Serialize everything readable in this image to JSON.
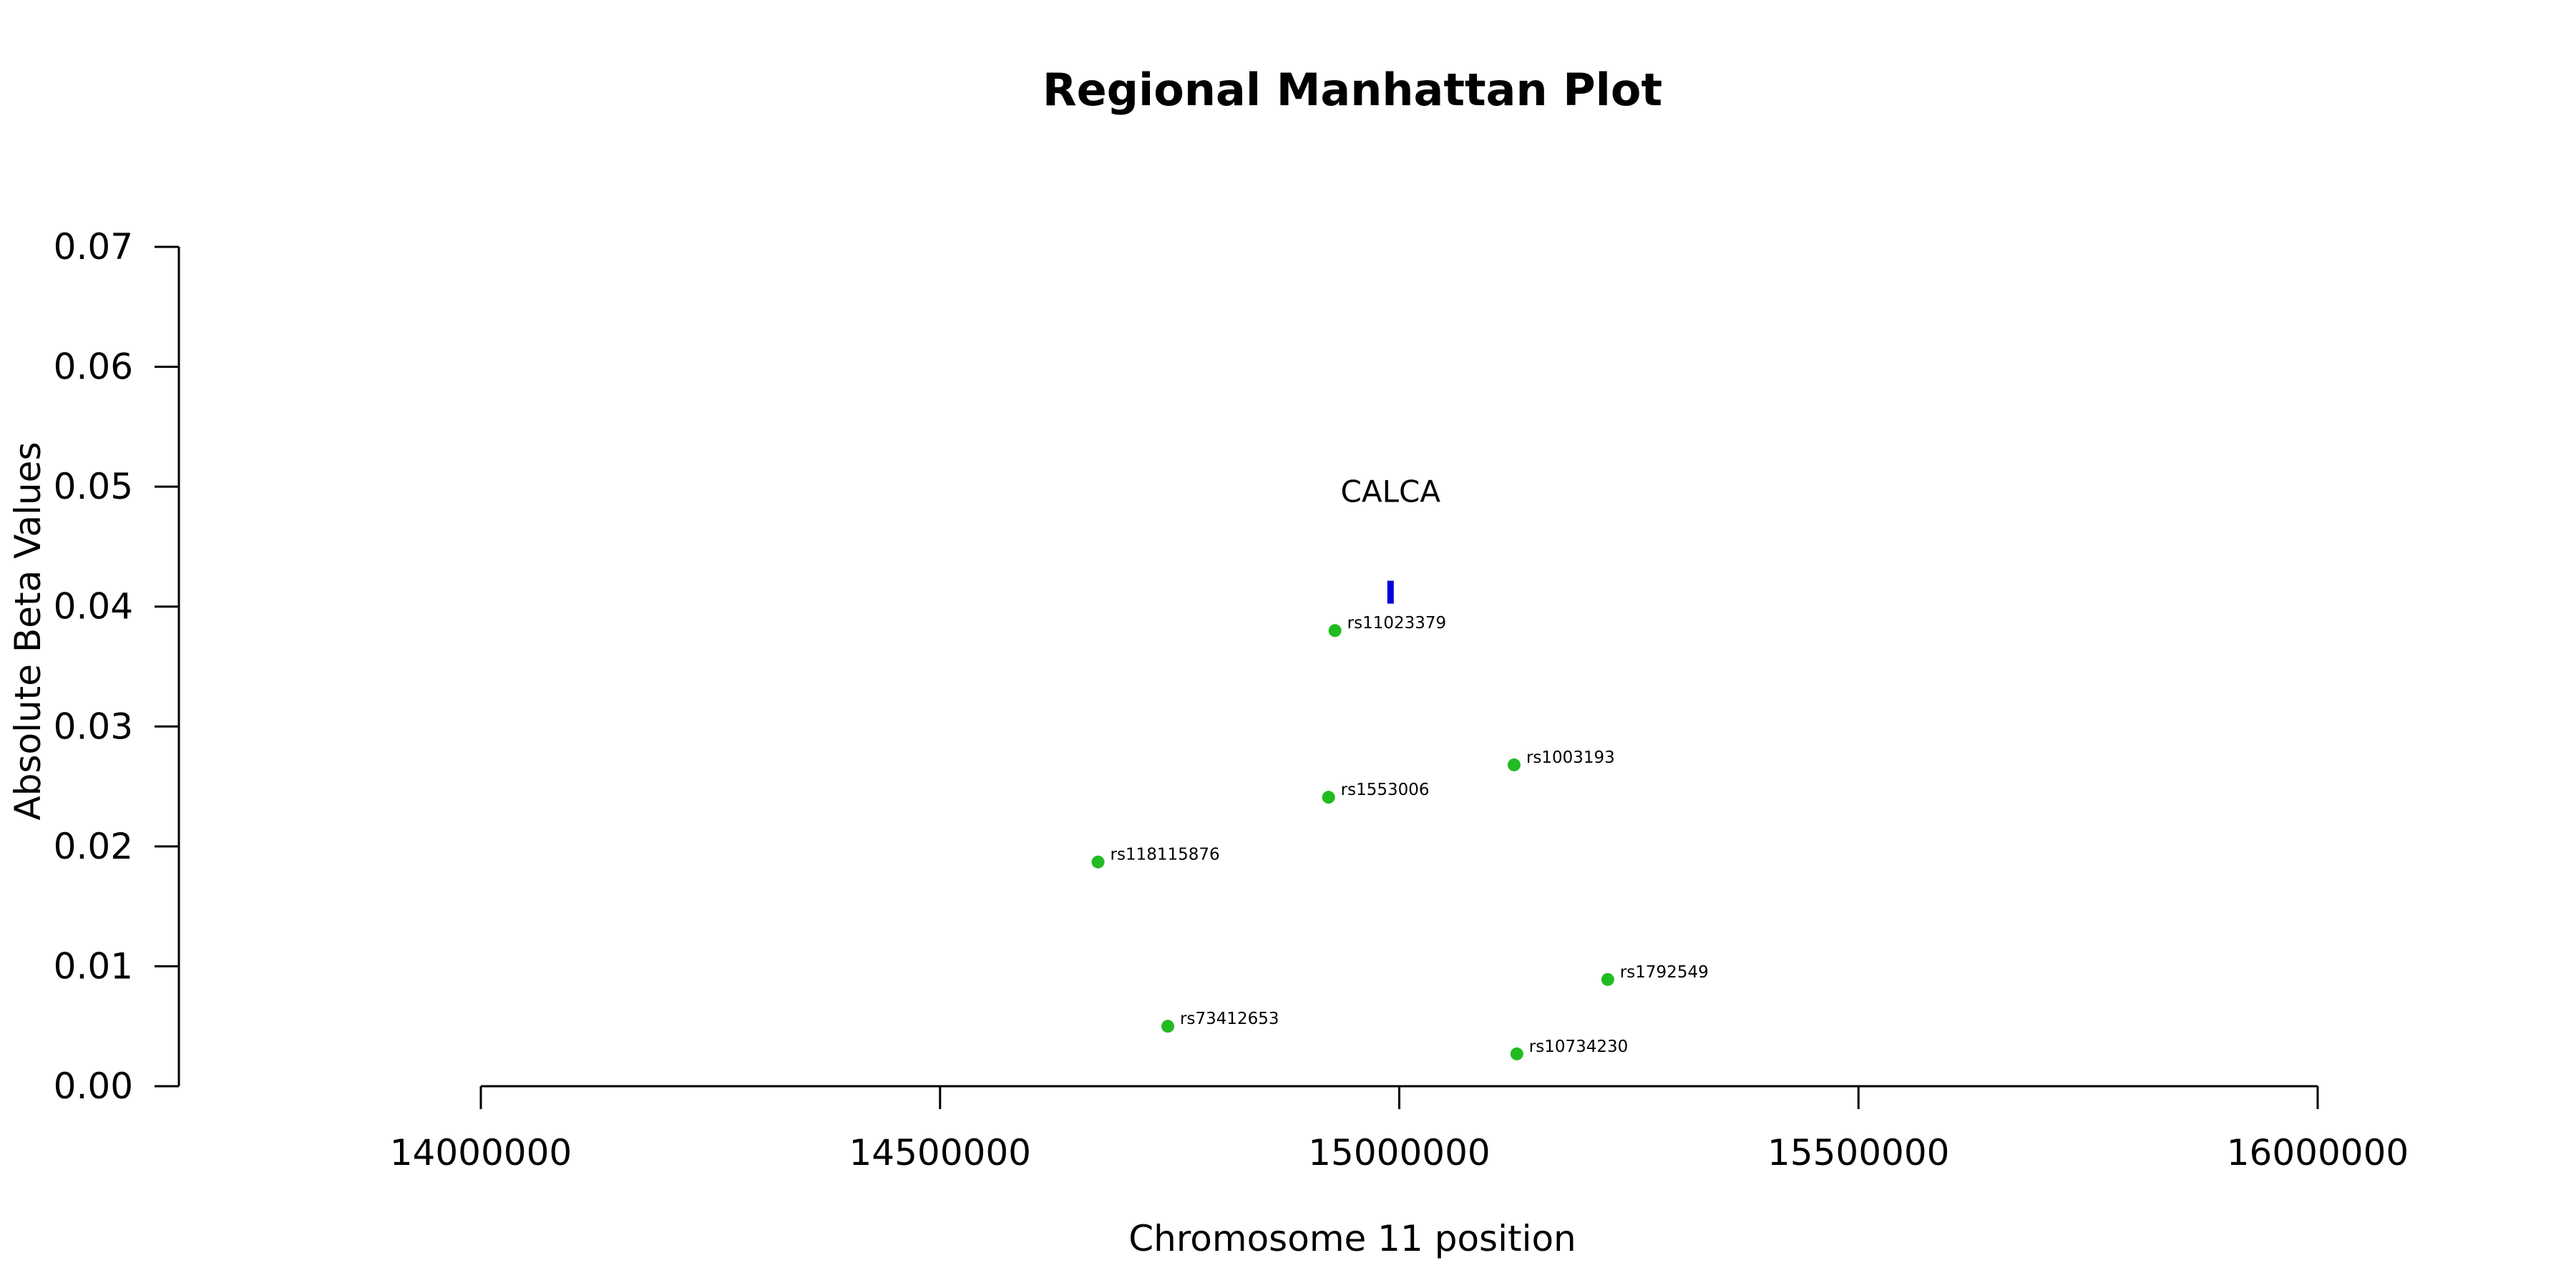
{
  "chart_data": {
    "type": "scatter",
    "title": "Regional Manhattan Plot",
    "xlabel": "Chromosome 11 position",
    "ylabel": "Absolute Beta Values",
    "xlim": [
      14000000,
      16000000
    ],
    "ylim": [
      0,
      0.07
    ],
    "x_ticks": [
      14000000,
      14500000,
      15000000,
      15500000,
      16000000
    ],
    "x_tick_labels": [
      "14000000",
      "14500000",
      "15000000",
      "15500000",
      "16000000"
    ],
    "y_ticks": [
      0,
      0.01,
      0.02,
      0.03,
      0.04,
      0.05,
      0.06,
      0.07
    ],
    "y_tick_labels": [
      "0.00",
      "0.01",
      "0.02",
      "0.03",
      "0.04",
      "0.05",
      "0.06",
      "0.07"
    ],
    "grid": false,
    "point_color": "#22bb22",
    "points": [
      {
        "label": "rs11023379",
        "x": 14930000,
        "y": 0.038
      },
      {
        "label": "rs1003193",
        "x": 15125000,
        "y": 0.0268
      },
      {
        "label": "rs1553006",
        "x": 14923000,
        "y": 0.0241
      },
      {
        "label": "rs118115876",
        "x": 14672000,
        "y": 0.0187
      },
      {
        "label": "rs1792549",
        "x": 15227000,
        "y": 0.0089
      },
      {
        "label": "rs73412653",
        "x": 14748000,
        "y": 0.005
      },
      {
        "label": "rs10734230",
        "x": 15128000,
        "y": 0.0027
      }
    ],
    "genes": [
      {
        "name": "CALCA",
        "start": 14988000,
        "end": 14993000,
        "y": 0.0412,
        "color": "#0000dd"
      }
    ]
  }
}
